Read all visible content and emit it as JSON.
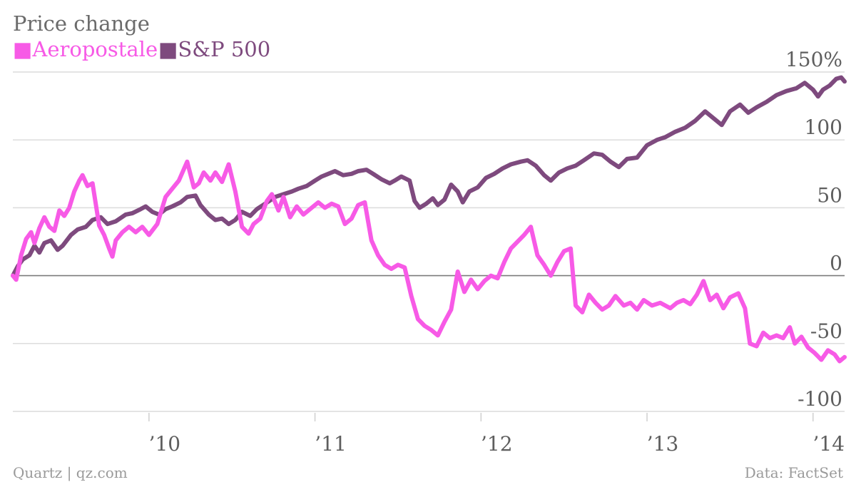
{
  "chart_data": {
    "type": "line",
    "title": "Price change",
    "legend_position": "top-left",
    "y_unit": "%",
    "ylim": [
      -100,
      150
    ],
    "yticks": [
      {
        "value": 150,
        "label": "150%"
      },
      {
        "value": 100,
        "label": "100"
      },
      {
        "value": 50,
        "label": "50"
      },
      {
        "value": 0,
        "label": "0"
      },
      {
        "value": -50,
        "label": "-50"
      },
      {
        "value": -100,
        "label": "-100"
      }
    ],
    "xlim": [
      2009.18,
      2014.19
    ],
    "xticks": [
      {
        "value": 2010,
        "label": "’10"
      },
      {
        "value": 2011,
        "label": "’11"
      },
      {
        "value": 2012,
        "label": "’12"
      },
      {
        "value": 2013,
        "label": "’13"
      },
      {
        "value": 2014,
        "label": "’14"
      }
    ],
    "grid": true,
    "series": [
      {
        "name": "S&P 500",
        "color": "#7e4a7e",
        "points": [
          [
            2009.18,
            0
          ],
          [
            2009.21,
            7
          ],
          [
            2009.24,
            12
          ],
          [
            2009.28,
            15
          ],
          [
            2009.31,
            22
          ],
          [
            2009.34,
            17
          ],
          [
            2009.37,
            24
          ],
          [
            2009.41,
            26
          ],
          [
            2009.45,
            19
          ],
          [
            2009.48,
            22
          ],
          [
            2009.53,
            30
          ],
          [
            2009.57,
            34
          ],
          [
            2009.62,
            36
          ],
          [
            2009.66,
            41
          ],
          [
            2009.71,
            43
          ],
          [
            2009.75,
            38
          ],
          [
            2009.8,
            40
          ],
          [
            2009.86,
            45
          ],
          [
            2009.9,
            46
          ],
          [
            2009.95,
            49
          ],
          [
            2009.98,
            51
          ],
          [
            2010.02,
            47
          ],
          [
            2010.06,
            45
          ],
          [
            2010.1,
            49
          ],
          [
            2010.14,
            51
          ],
          [
            2010.19,
            54
          ],
          [
            2010.23,
            58
          ],
          [
            2010.28,
            59
          ],
          [
            2010.31,
            52
          ],
          [
            2010.36,
            45
          ],
          [
            2010.4,
            41
          ],
          [
            2010.44,
            42
          ],
          [
            2010.48,
            38
          ],
          [
            2010.52,
            41
          ],
          [
            2010.56,
            47
          ],
          [
            2010.61,
            44
          ],
          [
            2010.65,
            49
          ],
          [
            2010.7,
            53
          ],
          [
            2010.76,
            58
          ],
          [
            2010.81,
            60
          ],
          [
            2010.86,
            62
          ],
          [
            2010.9,
            64
          ],
          [
            2010.95,
            66
          ],
          [
            2011.0,
            70
          ],
          [
            2011.04,
            73
          ],
          [
            2011.08,
            75
          ],
          [
            2011.12,
            77
          ],
          [
            2011.17,
            74
          ],
          [
            2011.22,
            75
          ],
          [
            2011.26,
            77
          ],
          [
            2011.31,
            78
          ],
          [
            2011.35,
            75
          ],
          [
            2011.4,
            71
          ],
          [
            2011.45,
            68
          ],
          [
            2011.48,
            70
          ],
          [
            2011.52,
            73
          ],
          [
            2011.57,
            70
          ],
          [
            2011.6,
            55
          ],
          [
            2011.63,
            50
          ],
          [
            2011.67,
            53
          ],
          [
            2011.71,
            57
          ],
          [
            2011.74,
            52
          ],
          [
            2011.78,
            56
          ],
          [
            2011.82,
            67
          ],
          [
            2011.86,
            62
          ],
          [
            2011.89,
            54
          ],
          [
            2011.93,
            62
          ],
          [
            2011.98,
            65
          ],
          [
            2012.03,
            72
          ],
          [
            2012.08,
            75
          ],
          [
            2012.13,
            79
          ],
          [
            2012.18,
            82
          ],
          [
            2012.24,
            84
          ],
          [
            2012.28,
            85
          ],
          [
            2012.33,
            81
          ],
          [
            2012.38,
            74
          ],
          [
            2012.42,
            70
          ],
          [
            2012.47,
            76
          ],
          [
            2012.52,
            79
          ],
          [
            2012.57,
            81
          ],
          [
            2012.62,
            85
          ],
          [
            2012.68,
            90
          ],
          [
            2012.73,
            89
          ],
          [
            2012.78,
            84
          ],
          [
            2012.83,
            80
          ],
          [
            2012.88,
            86
          ],
          [
            2012.94,
            87
          ],
          [
            2013.0,
            96
          ],
          [
            2013.06,
            100
          ],
          [
            2013.11,
            102
          ],
          [
            2013.17,
            106
          ],
          [
            2013.23,
            109
          ],
          [
            2013.29,
            114
          ],
          [
            2013.35,
            121
          ],
          [
            2013.4,
            116
          ],
          [
            2013.45,
            111
          ],
          [
            2013.5,
            121
          ],
          [
            2013.56,
            126
          ],
          [
            2013.61,
            120
          ],
          [
            2013.66,
            124
          ],
          [
            2013.72,
            128
          ],
          [
            2013.78,
            133
          ],
          [
            2013.84,
            136
          ],
          [
            2013.9,
            138
          ],
          [
            2013.95,
            142
          ],
          [
            2014.0,
            137
          ],
          [
            2014.03,
            132
          ],
          [
            2014.06,
            137
          ],
          [
            2014.1,
            140
          ],
          [
            2014.14,
            145
          ],
          [
            2014.17,
            146
          ],
          [
            2014.19,
            143
          ]
        ]
      },
      {
        "name": "Aeropostale",
        "color": "#f75ae6",
        "points": [
          [
            2009.18,
            0
          ],
          [
            2009.2,
            -3
          ],
          [
            2009.23,
            15
          ],
          [
            2009.26,
            27
          ],
          [
            2009.29,
            32
          ],
          [
            2009.31,
            24
          ],
          [
            2009.34,
            35
          ],
          [
            2009.37,
            43
          ],
          [
            2009.4,
            36
          ],
          [
            2009.43,
            33
          ],
          [
            2009.46,
            48
          ],
          [
            2009.49,
            44
          ],
          [
            2009.52,
            50
          ],
          [
            2009.55,
            62
          ],
          [
            2009.58,
            70
          ],
          [
            2009.6,
            74
          ],
          [
            2009.63,
            66
          ],
          [
            2009.66,
            68
          ],
          [
            2009.7,
            37
          ],
          [
            2009.73,
            30
          ],
          [
            2009.76,
            20
          ],
          [
            2009.78,
            14
          ],
          [
            2009.8,
            26
          ],
          [
            2009.84,
            32
          ],
          [
            2009.88,
            36
          ],
          [
            2009.92,
            32
          ],
          [
            2009.96,
            36
          ],
          [
            2010.0,
            30
          ],
          [
            2010.05,
            38
          ],
          [
            2010.1,
            58
          ],
          [
            2010.14,
            64
          ],
          [
            2010.18,
            70
          ],
          [
            2010.23,
            84
          ],
          [
            2010.27,
            65
          ],
          [
            2010.3,
            68
          ],
          [
            2010.33,
            76
          ],
          [
            2010.37,
            70
          ],
          [
            2010.4,
            76
          ],
          [
            2010.44,
            69
          ],
          [
            2010.48,
            82
          ],
          [
            2010.52,
            62
          ],
          [
            2010.56,
            36
          ],
          [
            2010.6,
            31
          ],
          [
            2010.63,
            38
          ],
          [
            2010.67,
            42
          ],
          [
            2010.71,
            55
          ],
          [
            2010.74,
            60
          ],
          [
            2010.78,
            48
          ],
          [
            2010.81,
            58
          ],
          [
            2010.85,
            43
          ],
          [
            2010.89,
            51
          ],
          [
            2010.93,
            45
          ],
          [
            2010.98,
            50
          ],
          [
            2011.02,
            54
          ],
          [
            2011.06,
            50
          ],
          [
            2011.1,
            53
          ],
          [
            2011.14,
            51
          ],
          [
            2011.18,
            38
          ],
          [
            2011.22,
            42
          ],
          [
            2011.26,
            52
          ],
          [
            2011.3,
            54
          ],
          [
            2011.34,
            26
          ],
          [
            2011.38,
            15
          ],
          [
            2011.42,
            8
          ],
          [
            2011.46,
            5
          ],
          [
            2011.5,
            8
          ],
          [
            2011.54,
            6
          ],
          [
            2011.58,
            -15
          ],
          [
            2011.62,
            -32
          ],
          [
            2011.66,
            -37
          ],
          [
            2011.7,
            -40
          ],
          [
            2011.74,
            -44
          ],
          [
            2011.78,
            -34
          ],
          [
            2011.82,
            -25
          ],
          [
            2011.86,
            3
          ],
          [
            2011.9,
            -12
          ],
          [
            2011.94,
            -3
          ],
          [
            2011.98,
            -10
          ],
          [
            2012.02,
            -4
          ],
          [
            2012.06,
            0
          ],
          [
            2012.1,
            -2
          ],
          [
            2012.14,
            10
          ],
          [
            2012.18,
            20
          ],
          [
            2012.22,
            25
          ],
          [
            2012.26,
            30
          ],
          [
            2012.3,
            36
          ],
          [
            2012.34,
            15
          ],
          [
            2012.38,
            8
          ],
          [
            2012.42,
            0
          ],
          [
            2012.46,
            10
          ],
          [
            2012.5,
            18
          ],
          [
            2012.54,
            20
          ],
          [
            2012.57,
            -22
          ],
          [
            2012.61,
            -27
          ],
          [
            2012.65,
            -14
          ],
          [
            2012.69,
            -20
          ],
          [
            2012.73,
            -25
          ],
          [
            2012.77,
            -22
          ],
          [
            2012.81,
            -15
          ],
          [
            2012.86,
            -22
          ],
          [
            2012.9,
            -20
          ],
          [
            2012.94,
            -25
          ],
          [
            2012.98,
            -18
          ],
          [
            2013.03,
            -22
          ],
          [
            2013.08,
            -20
          ],
          [
            2013.14,
            -24
          ],
          [
            2013.18,
            -20
          ],
          [
            2013.22,
            -18
          ],
          [
            2013.26,
            -21
          ],
          [
            2013.3,
            -14
          ],
          [
            2013.34,
            -4
          ],
          [
            2013.38,
            -18
          ],
          [
            2013.42,
            -14
          ],
          [
            2013.46,
            -24
          ],
          [
            2013.5,
            -16
          ],
          [
            2013.55,
            -13
          ],
          [
            2013.59,
            -24
          ],
          [
            2013.62,
            -50
          ],
          [
            2013.66,
            -52
          ],
          [
            2013.7,
            -42
          ],
          [
            2013.74,
            -46
          ],
          [
            2013.78,
            -44
          ],
          [
            2013.82,
            -46
          ],
          [
            2013.86,
            -38
          ],
          [
            2013.89,
            -50
          ],
          [
            2013.93,
            -45
          ],
          [
            2013.97,
            -53
          ],
          [
            2014.01,
            -57
          ],
          [
            2014.05,
            -62
          ],
          [
            2014.09,
            -55
          ],
          [
            2014.13,
            -58
          ],
          [
            2014.16,
            -63
          ],
          [
            2014.19,
            -60
          ]
        ]
      }
    ]
  },
  "footer": {
    "source_left": "Quartz | qz.com",
    "source_right": "Data: FactSet"
  },
  "legend_marker": "■"
}
